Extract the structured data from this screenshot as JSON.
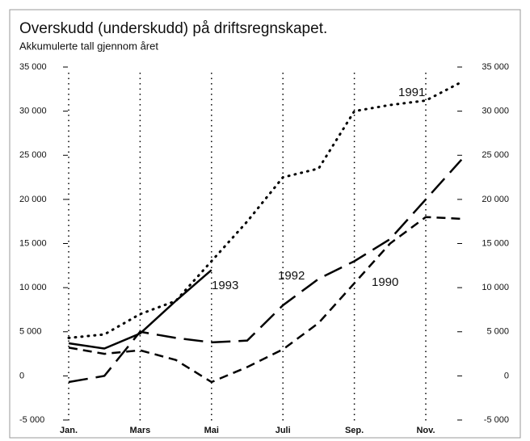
{
  "chart_data": {
    "type": "line",
    "title": "Overskudd (underskudd) på driftsregnskapet.",
    "subtitle": "Akkumulerte tall gjennom året",
    "categories": [
      "Jan.",
      null,
      "Mars",
      null,
      "Mai",
      null,
      "Juli",
      null,
      "Sep.",
      null,
      "Nov.",
      null
    ],
    "series": [
      {
        "name": "1991",
        "color": "#000000",
        "style": "dotted",
        "values": [
          4300,
          4700,
          7000,
          8500,
          13000,
          17500,
          22500,
          23500,
          30000,
          30700,
          31200,
          33300
        ]
      },
      {
        "name": "1993",
        "color": "#000000",
        "style": "solid",
        "values": [
          3700,
          3100,
          4800,
          8500,
          12000,
          null,
          null,
          null,
          null,
          null,
          null,
          null
        ]
      },
      {
        "name": "1992",
        "color": "#000000",
        "style": "long-dash",
        "values": [
          -700,
          0,
          5000,
          4300,
          3800,
          4000,
          8000,
          11000,
          13000,
          15500,
          20000,
          24500
        ]
      },
      {
        "name": "1990",
        "color": "#000000",
        "style": "short-dash",
        "values": [
          3200,
          2500,
          2900,
          1800,
          -700,
          1000,
          3000,
          6000,
          10500,
          15000,
          18000,
          17800
        ]
      }
    ],
    "ylim": [
      -5000,
      35000
    ],
    "yticks": [
      {
        "value": -5000,
        "label": "-5 000"
      },
      0,
      {
        "value": 5000,
        "label": "5 000"
      },
      {
        "value": 10000,
        "label": "10 000"
      },
      {
        "value": 15000,
        "label": "15 000"
      },
      {
        "value": 20000,
        "label": "20 000"
      },
      {
        "value": 25000,
        "label": "25 000"
      },
      {
        "value": 30000,
        "label": "30 000"
      },
      {
        "value": 35000,
        "label": "35 000"
      }
    ],
    "y2lim": [
      -5000,
      35000
    ],
    "grid": true
  }
}
